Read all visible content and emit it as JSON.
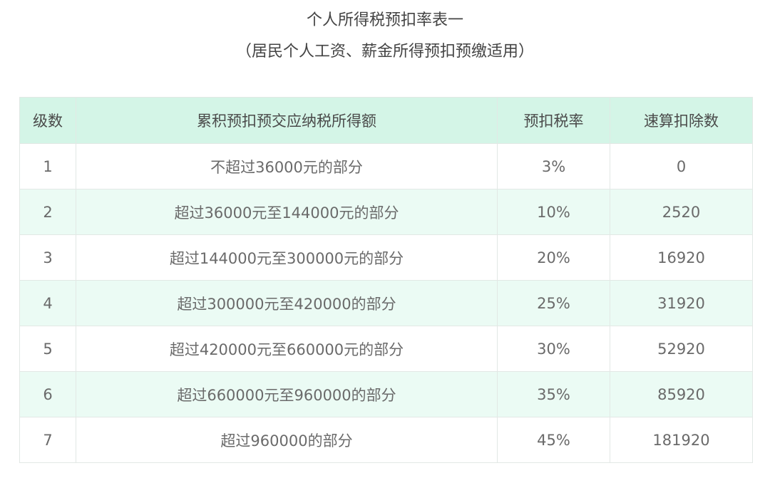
{
  "title": "个人所得税预扣率表一",
  "subtitle": "（居民个人工资、薪金所得预扣预缴适用）",
  "table": {
    "headers": [
      "级数",
      "累积预扣预交应纳税所得额",
      "预扣税率",
      "速算扣除数"
    ],
    "rows": [
      [
        "1",
        "不超过36000元的部分",
        "3%",
        "0"
      ],
      [
        "2",
        "超过36000元至144000元的部分",
        "10%",
        "2520"
      ],
      [
        "3",
        "超过144000元至300000元的部分",
        "20%",
        "16920"
      ],
      [
        "4",
        "超过300000元至420000的部分",
        "25%",
        "31920"
      ],
      [
        "5",
        "超过420000元至660000元的部分",
        "30%",
        "52920"
      ],
      [
        "6",
        "超过660000元至960000的部分",
        "35%",
        "85920"
      ],
      [
        "7",
        "超过960000的部分",
        "45%",
        "181920"
      ]
    ]
  },
  "colors": {
    "header_bg": "#d4f5e7",
    "stripe_bg": "#ebfbf4",
    "text": "#6a6a6a"
  }
}
